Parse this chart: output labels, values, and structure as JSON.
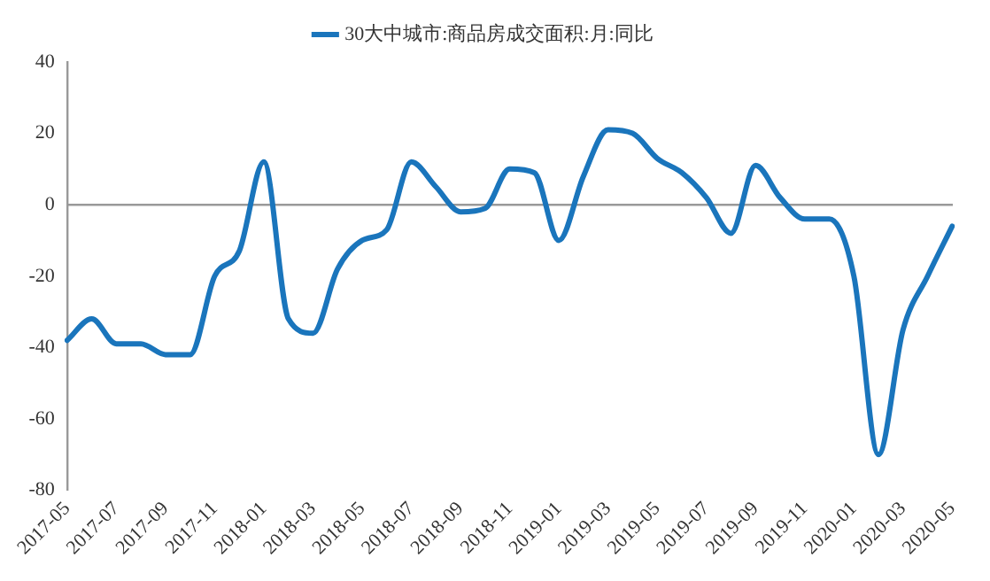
{
  "chart_data": {
    "type": "line",
    "categories": [
      "2017-05",
      null,
      "2017-07",
      null,
      "2017-09",
      null,
      "2017-11",
      null,
      "2018-01",
      null,
      "2018-03",
      null,
      "2018-05",
      null,
      "2018-07",
      null,
      "2018-09",
      null,
      "2018-11",
      null,
      "2019-01",
      null,
      "2019-03",
      null,
      "2019-05",
      null,
      "2019-07",
      null,
      "2019-09",
      null,
      "2019-11",
      null,
      "2020-01",
      null,
      "2020-03",
      null,
      "2020-05"
    ],
    "series": [
      {
        "name": "30大中城市:商品房成交面积:月:同比",
        "color": "#1a75bc",
        "values": [
          -38,
          -32,
          -39,
          -39,
          -42,
          -42,
          -20,
          -13,
          12,
          -32,
          -36,
          -18,
          -10,
          -7,
          12,
          5,
          -2,
          -1,
          10,
          9,
          -10,
          8,
          21,
          20,
          13,
          9,
          2,
          -8,
          11,
          2,
          -4,
          -4,
          -20,
          -70,
          -35,
          -20,
          -6
        ]
      }
    ],
    "ylim": [
      -80,
      40
    ],
    "yticks": [
      -80,
      -60,
      -40,
      -20,
      0,
      20,
      40
    ],
    "legend": "top",
    "marker": "none",
    "line_style": "solid"
  }
}
